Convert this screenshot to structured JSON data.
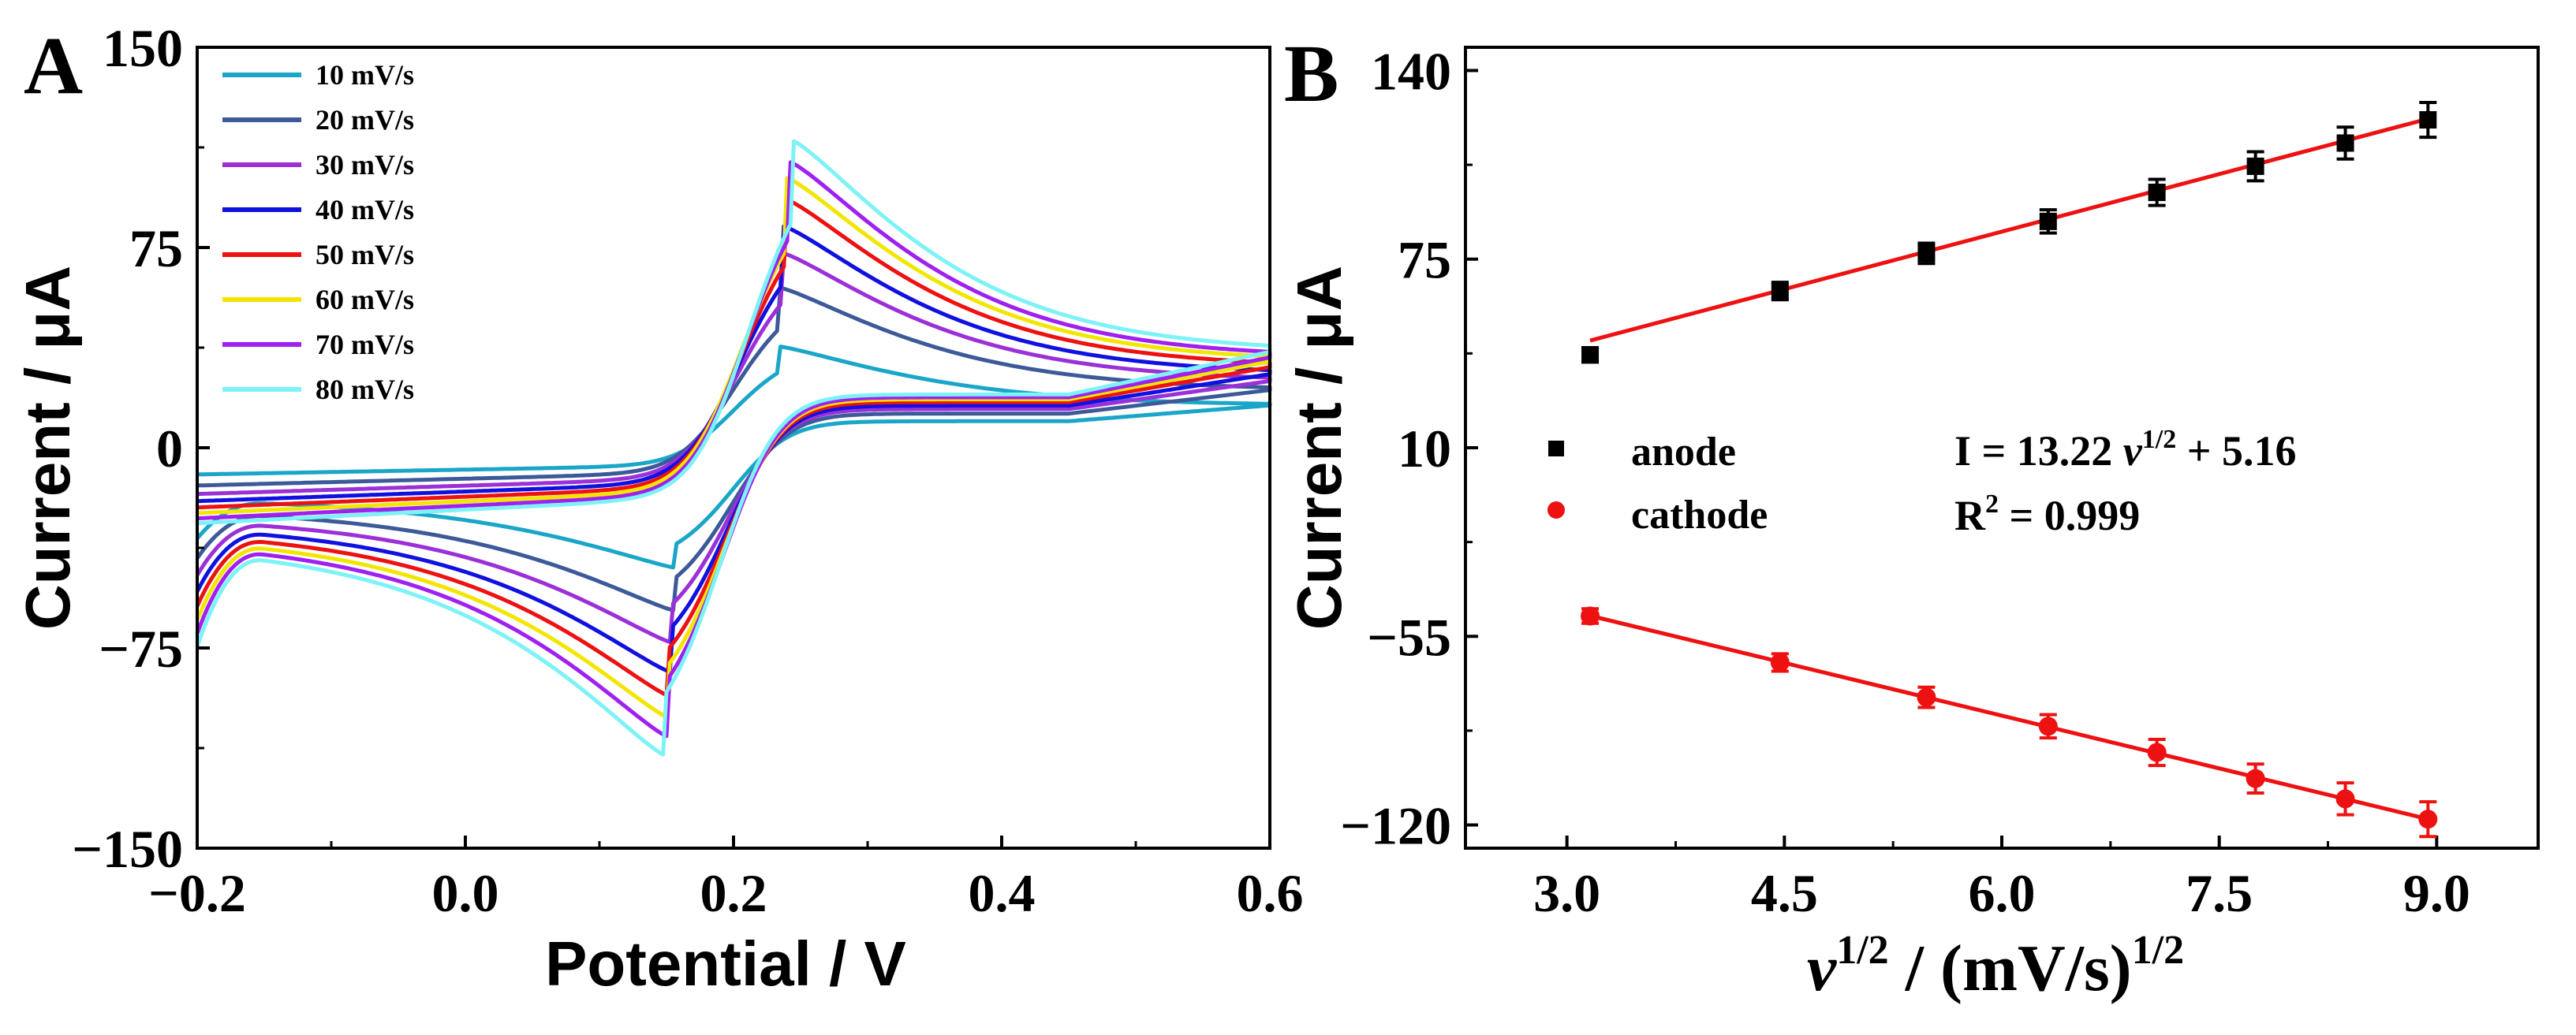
{
  "chart_data": [
    {
      "type": "line",
      "panel_label": "A",
      "xlabel": "Potential / V",
      "ylabel": "Current / μA",
      "xlim": [
        -0.2,
        0.6
      ],
      "ylim": [
        -150,
        150
      ],
      "xticks": [
        -0.2,
        0.0,
        0.2,
        0.4,
        0.6
      ],
      "xtick_labels": [
        "−0.2",
        "0.0",
        "0.2",
        "0.4",
        "0.6"
      ],
      "yticks": [
        -150,
        -75,
        0,
        75,
        150
      ],
      "ytick_labels": [
        "−150",
        "−75",
        "0",
        "75",
        "150"
      ],
      "legend_position": "top-left",
      "series": [
        {
          "name": "10 mV/s",
          "color": "#1aa6c8",
          "scan_rate": 10,
          "anodic_peak": {
            "E": 0.233,
            "I": 38
          },
          "cathodic_peak": {
            "E": 0.157,
            "I": -45
          }
        },
        {
          "name": "20 mV/s",
          "color": "#3c5a99",
          "scan_rate": 20,
          "anodic_peak": {
            "E": 0.234,
            "I": 60
          },
          "cathodic_peak": {
            "E": 0.156,
            "I": -61
          }
        },
        {
          "name": "30 mV/s",
          "color": "#9b30d9",
          "scan_rate": 30,
          "anodic_peak": {
            "E": 0.236,
            "I": 73
          },
          "cathodic_peak": {
            "E": 0.154,
            "I": -73
          }
        },
        {
          "name": "40 mV/s",
          "color": "#1010e0",
          "scan_rate": 40,
          "anodic_peak": {
            "E": 0.237,
            "I": 83
          },
          "cathodic_peak": {
            "E": 0.153,
            "I": -84
          }
        },
        {
          "name": "50 mV/s",
          "color": "#ee1111",
          "scan_rate": 50,
          "anodic_peak": {
            "E": 0.239,
            "I": 93
          },
          "cathodic_peak": {
            "E": 0.152,
            "I": -93
          }
        },
        {
          "name": "60 mV/s",
          "color": "#f2e600",
          "scan_rate": 60,
          "anodic_peak": {
            "E": 0.24,
            "I": 101
          },
          "cathodic_peak": {
            "E": 0.151,
            "I": -101
          }
        },
        {
          "name": "70 mV/s",
          "color": "#a020f0",
          "scan_rate": 70,
          "anodic_peak": {
            "E": 0.242,
            "I": 107
          },
          "cathodic_peak": {
            "E": 0.15,
            "I": -108
          }
        },
        {
          "name": "80 mV/s",
          "color": "#7df2f7",
          "scan_rate": 80,
          "anodic_peak": {
            "E": 0.244,
            "I": 115
          },
          "cathodic_peak": {
            "E": 0.148,
            "I": -115
          }
        }
      ]
    },
    {
      "type": "scatter",
      "panel_label": "B",
      "xlabel_base": "v",
      "xlabel_sup": "1/2",
      "xlabel_mid": " / (mV/s)",
      "xlabel_sup2": "1/2",
      "ylabel": "Current / μA",
      "xlim": [
        2.3,
        9.7
      ],
      "ylim": [
        -128,
        148
      ],
      "xticks": [
        3.0,
        4.5,
        6.0,
        7.5,
        9.0
      ],
      "xtick_labels": [
        "3.0",
        "4.5",
        "6.0",
        "7.5",
        "9.0"
      ],
      "yticks": [
        -120,
        -55,
        10,
        75,
        140
      ],
      "ytick_labels": [
        "−120",
        "−55",
        "10",
        "75",
        "140"
      ],
      "x": [
        3.16,
        4.47,
        5.48,
        6.32,
        7.07,
        7.75,
        8.37,
        8.94
      ],
      "series": [
        {
          "name": "anode",
          "color": "#000000",
          "marker": "square",
          "values": [
            42,
            64,
            77,
            88,
            98,
            107,
            115,
            123
          ],
          "errors": [
            2.5,
            3,
            3.5,
            4,
            4.5,
            5,
            5.5,
            6
          ]
        },
        {
          "name": "cathode",
          "color": "#ee1111",
          "marker": "circle",
          "values": [
            -48,
            -64,
            -76,
            -86,
            -95,
            -104,
            -111,
            -118
          ],
          "errors": [
            2.5,
            3,
            3.5,
            4,
            4.5,
            5,
            5.5,
            6
          ]
        }
      ],
      "fits": [
        {
          "name": "anode fit",
          "color": "#ee1111",
          "slope": 13.22,
          "intercept": 5.16,
          "x_range": [
            3.16,
            8.94
          ]
        },
        {
          "name": "cathode fit",
          "color": "#ee1111",
          "slope": -12.12,
          "intercept": -9.6,
          "x_range": [
            3.16,
            8.94
          ]
        }
      ],
      "equation": {
        "prefix": "I = 13.22 ",
        "var": "v",
        "sup": "1/2",
        "suffix": " + 5.16"
      },
      "r2": {
        "prefix": "R",
        "sup": "2",
        "suffix": " = 0.999"
      },
      "legend_position": "center-left"
    }
  ]
}
